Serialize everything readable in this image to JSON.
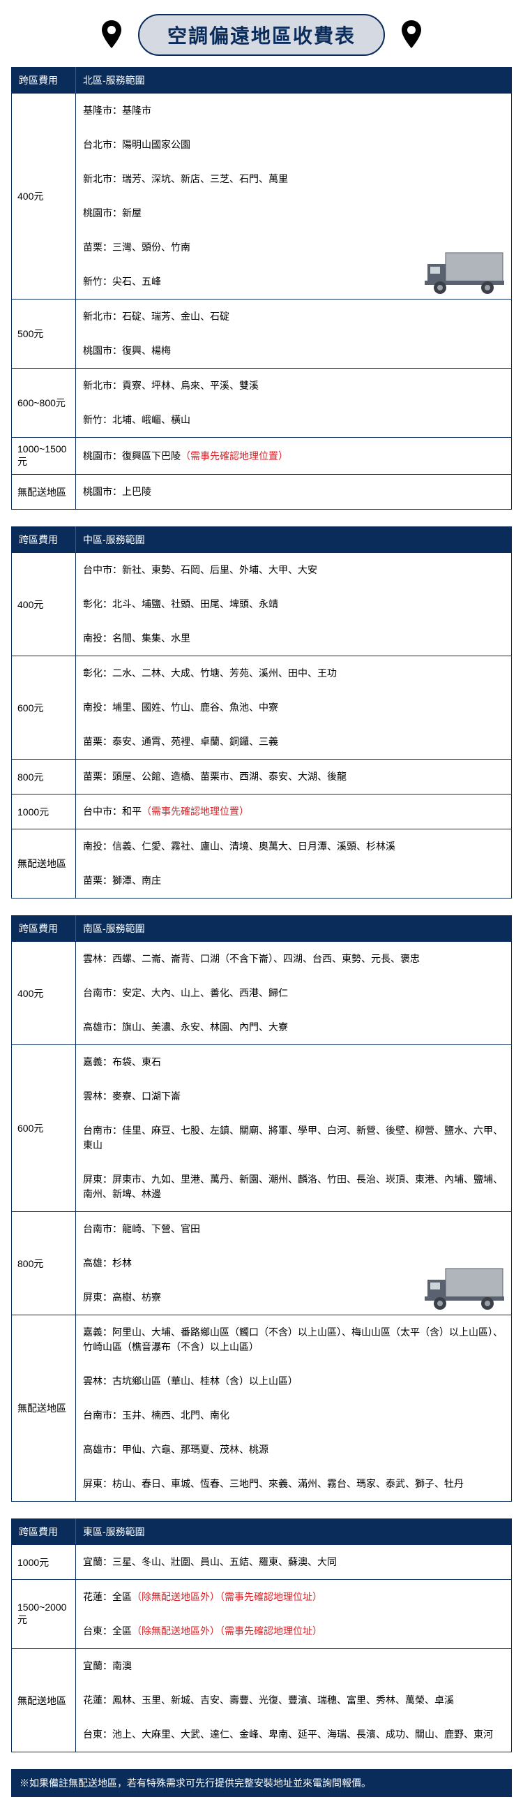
{
  "title": "空調偏遠地區收費表",
  "headers": {
    "fee": "跨區費用",
    "north": "北區-服務範圍",
    "center": "中區-服務範圍",
    "south": "南區-服務範圍",
    "east": "東區-服務範圍"
  },
  "colors": {
    "navy": "#0a2c5a",
    "lightblue": "#d5d9e2",
    "red": "#d9252a",
    "truck_body": "#b0b4bb",
    "truck_cab": "#5a6270"
  },
  "north": [
    {
      "fee": "400元",
      "areas": [
        "基隆市：基隆市",
        "台北市：陽明山國家公園",
        "新北市：瑞芳、深坑、新店、三芝、石門、萬里",
        "桃園市：新屋",
        "苗栗：三灣、頭份、竹南",
        "新竹：尖石、五峰"
      ]
    },
    {
      "fee": "500元",
      "areas": [
        "新北市：石碇、瑞芳、金山、石碇",
        "桃園市：復興、楊梅"
      ]
    },
    {
      "fee": "600~800元",
      "areas": [
        "新北市：貢寮、坪林、烏來、平溪、雙溪",
        "新竹：北埔、峨嵋、橫山"
      ]
    },
    {
      "fee": "1000~1500元",
      "areas": [
        "桃園市：復興區下巴陵<span class=\"note-red\">（需事先確認地理位置）</span>"
      ]
    },
    {
      "fee": "無配送地區",
      "areas": [
        "桃園市：上巴陵"
      ]
    }
  ],
  "center": [
    {
      "fee": "400元",
      "areas": [
        "台中市：新社、東勢、石岡、后里、外埔、大甲、大安",
        "彰化：北斗、埔鹽、社頭、田尾、埤頭、永靖",
        "南投：名間、集集、水里"
      ]
    },
    {
      "fee": "600元",
      "areas": [
        "彰化：二水、二林、大成、竹塘、芳苑、溪州、田中、王功",
        "南投：埔里、國姓、竹山、鹿谷、魚池、中寮",
        "苗栗：泰安、通霄、苑裡、卓蘭、銅鑼、三義"
      ]
    },
    {
      "fee": "800元",
      "areas": [
        "苗栗：頭屋、公館、造橋、苗栗市、西湖、泰安、大湖、後龍"
      ]
    },
    {
      "fee": "1000元",
      "areas": [
        "台中市：和平<span class=\"note-red\">（需事先確認地理位置）</span>"
      ]
    },
    {
      "fee": "無配送地區",
      "areas": [
        "南投：信義、仁愛、霧社、廬山、清境、奧萬大、日月潭、溪頭、杉林溪",
        "苗栗：獅潭、南庄"
      ]
    }
  ],
  "south": [
    {
      "fee": "400元",
      "areas": [
        "雲林：西螺、二崙、崙背、口湖（不含下崙）、四湖、台西、東勢、元長、褒忠",
        "台南市：安定、大內、山上、善化、西港、歸仁",
        "高雄市：旗山、美濃、永安、林園、內門、大寮"
      ]
    },
    {
      "fee": "600元",
      "areas": [
        "嘉義：布袋、東石",
        "雲林：麥寮、口湖下崙",
        "台南市：佳里、麻豆、七股、左鎮、關廟、將軍、學甲、白河、新營、後壁、柳營、鹽水、六甲、東山",
        "屏東：屏東市、九如、里港、萬丹、新園、潮州、麟洛、竹田、長治、崁頂、東港、內埔、鹽埔、南州、新埤、林邊"
      ]
    },
    {
      "fee": "800元",
      "areas": [
        "台南市：龍崎、下營、官田",
        "高雄：杉林",
        "屏東：高樹、枋寮"
      ]
    },
    {
      "fee": "無配送地區",
      "areas": [
        "嘉義：阿里山、大埔、番路鄉山區（觸口（不含）以上山區）、梅山山區（太平（含）以上山區）、竹崎山區（樵音瀑布（不含）以上山區）",
        "雲林：古坑鄉山區（華山、桂林（含）以上山區）",
        "台南市：玉井、楠西、北門、南化",
        "高雄市：甲仙、六龜、那瑪夏、茂林、桃源",
        "屏東：枋山、春日、車城、恆春、三地門、來義、滿州、霧台、瑪家、泰武、獅子、牡丹"
      ]
    }
  ],
  "east": [
    {
      "fee": "1000元",
      "areas": [
        "宜蘭：三星、冬山、壯圍、員山、五結、羅東、蘇澳、大同"
      ]
    },
    {
      "fee": "1500~2000元",
      "areas": [
        "花蓮：全區<span class=\"note-red\">（除無配送地區外）（需事先確認地理位址）</span>",
        "台東：全區<span class=\"note-red\">（除無配送地區外）（需事先確認地理位址）</span>"
      ]
    },
    {
      "fee": "無配送地區",
      "areas": [
        "宜蘭：南澳",
        "花蓮：鳳林、玉里、新城、吉安、壽豐、光復、豐濱、瑞穗、富里、秀林、萬榮、卓溪",
        "台東：池上、大麻里、大武、達仁、金峰、卑南、延平、海瑞、長濱、成功、關山、鹿野、東河"
      ]
    }
  ],
  "footnote": "※如果備註無配送地區，若有特殊需求可先行提供完整安裝地址並來電詢問報價。"
}
